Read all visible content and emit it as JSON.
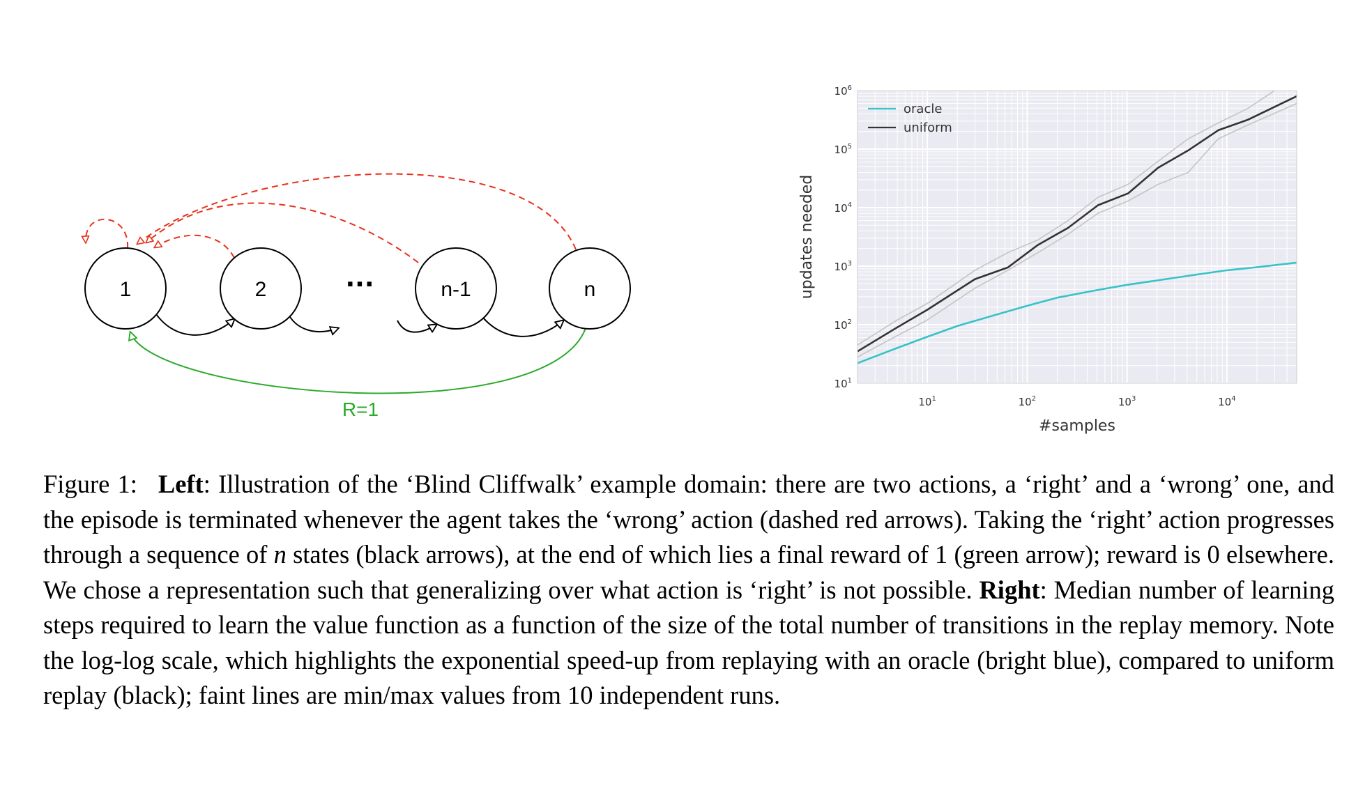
{
  "left_figure": {
    "nodes": [
      "1",
      "2",
      "n-1",
      "n"
    ],
    "ellipsis": "···",
    "reward_label": "R=1",
    "colors": {
      "wrong_arrow": "#e8301c",
      "right_arrow": "#000000",
      "reward_arrow": "#2aaa2a"
    }
  },
  "chart_data": {
    "type": "line",
    "xlabel": "#samples",
    "ylabel": "updates needed",
    "xscale": "log",
    "yscale": "log",
    "xlim": [
      2,
      50000
    ],
    "ylim": [
      10,
      1000000
    ],
    "grid": true,
    "legend_position": "top-left",
    "x_ticks": [
      {
        "base": "10",
        "exp": "1"
      },
      {
        "base": "10",
        "exp": "2"
      },
      {
        "base": "10",
        "exp": "3"
      },
      {
        "base": "10",
        "exp": "4"
      }
    ],
    "y_ticks": [
      {
        "base": "10",
        "exp": "1"
      },
      {
        "base": "10",
        "exp": "2"
      },
      {
        "base": "10",
        "exp": "3"
      },
      {
        "base": "10",
        "exp": "4"
      },
      {
        "base": "10",
        "exp": "5"
      },
      {
        "base": "10",
        "exp": "6"
      }
    ],
    "series": [
      {
        "name": "oracle",
        "color": "#35c3c8",
        "x": [
          2,
          5,
          10,
          20,
          50,
          100,
          200,
          500,
          1000,
          2000,
          5000,
          10000,
          20000,
          50000
        ],
        "y": [
          22,
          40,
          62,
          95,
          150,
          210,
          290,
          390,
          480,
          570,
          720,
          850,
          960,
          1150
        ]
      },
      {
        "name": "uniform",
        "color": "#333333",
        "x": [
          2,
          5,
          10,
          30,
          64,
          128,
          256,
          512,
          1024,
          2048,
          4096,
          8192,
          16384,
          50000
        ],
        "y": [
          35,
          90,
          180,
          600,
          950,
          2300,
          4500,
          11000,
          17500,
          48000,
          95000,
          210000,
          320000,
          800000
        ]
      },
      {
        "name": "uniform max",
        "color": "#c8c8c8",
        "faint": true,
        "x": [
          2,
          5,
          10,
          30,
          64,
          128,
          256,
          512,
          1024,
          2048,
          4096,
          8192,
          16384,
          30000
        ],
        "y": [
          45,
          120,
          230,
          850,
          1700,
          2800,
          6000,
          15000,
          25000,
          62000,
          150000,
          280000,
          500000,
          1000000
        ]
      },
      {
        "name": "uniform min",
        "color": "#c8c8c8",
        "faint": true,
        "x": [
          2,
          5,
          10,
          30,
          64,
          128,
          256,
          512,
          1024,
          2048,
          4096,
          8192,
          16384,
          50000
        ],
        "y": [
          28,
          65,
          120,
          420,
          850,
          1700,
          3500,
          8000,
          13000,
          25000,
          40000,
          150000,
          260000,
          600000
        ]
      }
    ]
  },
  "caption": {
    "label": "Figure 1:",
    "left_bold": "Left",
    "part1": ": Illustration of the ‘Blind Cliffwalk’ example domain: there are two actions, a ‘right’ and a ‘wrong’ one, and the episode is terminated whenever the agent takes the ‘wrong’ action (dashed red arrows). Taking the ‘right’ action progresses through a sequence of ",
    "n_symbol": "n",
    "part2": " states (black arrows), at the end of which lies a final reward of 1 (green arrow); reward is 0 elsewhere. We chose a representation such that generalizing over what action is ‘right’ is not possible. ",
    "right_bold": "Right",
    "part3": ": Median number of learning steps required to learn the value function as a function of the size of the total number of transitions in the replay memory. Note the log-log scale, which highlights the exponential speed-up from replaying with an oracle (bright blue), compared to uniform replay (black); faint lines are min/max values from 10 independent runs."
  }
}
